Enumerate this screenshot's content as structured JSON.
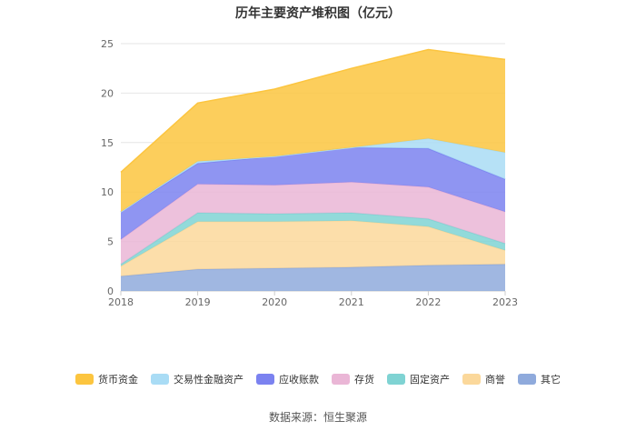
{
  "page": {
    "title": "历年主要资产堆积图（亿元）",
    "source": "数据来源：恒生聚源"
  },
  "chart_data": {
    "type": "area",
    "stacked": true,
    "title": "历年主要资产堆积图（亿元）",
    "x": [
      "2018",
      "2019",
      "2020",
      "2021",
      "2022",
      "2023"
    ],
    "ylim": [
      0,
      25
    ],
    "yticks": [
      "0",
      "5",
      "10",
      "15",
      "20",
      "25"
    ],
    "grid": true,
    "legend_position": "bottom",
    "series": [
      {
        "name": "其它",
        "color": "#8faadc",
        "values": [
          1.5,
          2.2,
          2.3,
          2.4,
          2.6,
          2.7
        ]
      },
      {
        "name": "商誉",
        "color": "#fbd89b",
        "values": [
          1.0,
          4.8,
          4.7,
          4.7,
          3.9,
          1.4
        ]
      },
      {
        "name": "固定资产",
        "color": "#7fd3d3",
        "values": [
          0.2,
          0.9,
          0.8,
          0.8,
          0.8,
          0.7
        ]
      },
      {
        "name": "存货",
        "color": "#eab6d6",
        "values": [
          2.5,
          2.9,
          2.9,
          3.1,
          3.2,
          3.2
        ]
      },
      {
        "name": "应收账款",
        "color": "#7b82f0",
        "values": [
          2.8,
          2.1,
          2.9,
          3.5,
          3.9,
          3.3
        ]
      },
      {
        "name": "交易性金融资产",
        "color": "#a9dcf5",
        "values": [
          0.0,
          0.2,
          0.0,
          0.0,
          1.0,
          2.7
        ]
      },
      {
        "name": "货币资金",
        "color": "#fcc53f",
        "values": [
          4.0,
          5.9,
          6.8,
          8.0,
          9.0,
          9.4
        ]
      }
    ]
  }
}
